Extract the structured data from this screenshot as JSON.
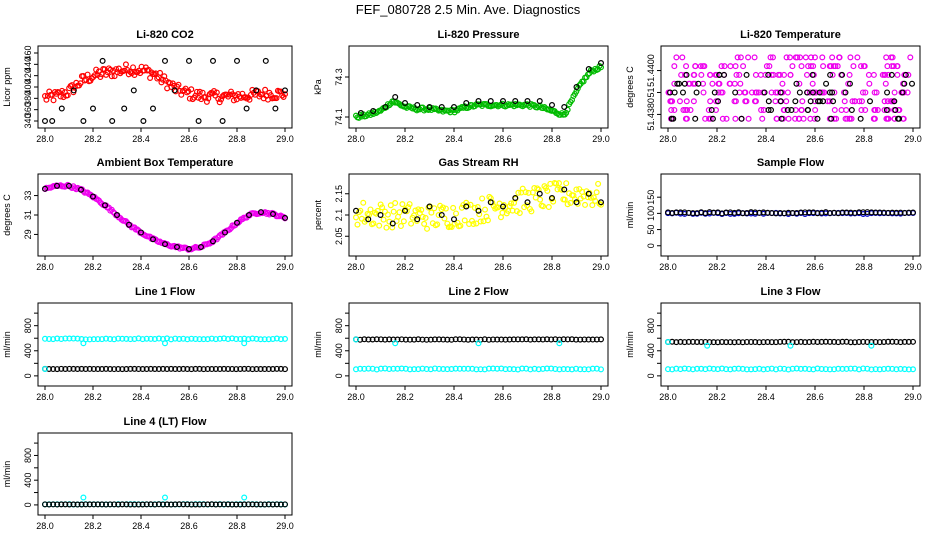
{
  "figure": {
    "title": "FEF_080728  2.5 Min. Ave. Diagnostics"
  },
  "chart_data": [
    {
      "type": "scatter",
      "title": "Li-820 CO2",
      "ylabel": "Licor ppm",
      "xlim": [
        28.0,
        29.0
      ],
      "ylim": [
        340,
        460
      ],
      "xticks": [
        "28.0",
        "28.2",
        "28.4",
        "28.6",
        "28.8",
        "29.0"
      ],
      "yticks": [
        340,
        360,
        380,
        400,
        420,
        440,
        460
      ],
      "series": [
        {
          "color": "#ff0000",
          "style": "dense",
          "x": [
            28.0,
            28.05,
            28.1,
            28.15,
            28.2,
            28.25,
            28.3,
            28.35,
            28.4,
            28.45,
            28.5,
            28.55,
            28.6,
            28.65,
            28.7,
            28.75,
            28.8,
            28.85,
            28.9,
            28.95,
            29.0
          ],
          "y": [
            381,
            384,
            392,
            410,
            420,
            425,
            428,
            432,
            430,
            424,
            410,
            395,
            388,
            384,
            383,
            383,
            384,
            385,
            387,
            388,
            388
          ],
          "spread": 10
        },
        {
          "color": "#000000",
          "style": "levels",
          "x": [
            28.0,
            28.03,
            28.07,
            28.12,
            28.16,
            28.2,
            28.24,
            28.28,
            28.33,
            28.37,
            28.41,
            28.45,
            28.5,
            28.54,
            28.6,
            28.64,
            28.7,
            28.74,
            28.8,
            28.84,
            28.88,
            28.92,
            28.96,
            29.0
          ],
          "y": [
            340,
            340,
            362,
            394,
            340,
            362,
            446,
            340,
            362,
            394,
            340,
            362,
            446,
            394,
            446,
            340,
            446,
            340,
            446,
            362,
            394,
            446,
            362,
            394
          ]
        }
      ]
    },
    {
      "type": "scatter",
      "title": "Li-820 Pressure",
      "ylabel": "kPa",
      "xlim": [
        28.0,
        29.0
      ],
      "ylim": [
        74.08,
        74.42
      ],
      "xticks": [
        "28.0",
        "28.2",
        "28.4",
        "28.6",
        "28.8",
        "29.0"
      ],
      "yticks": [
        74.1,
        74.3
      ],
      "ytick_labels": [
        "74.1",
        "74.3"
      ],
      "series": [
        {
          "color": "#00bb00",
          "style": "dense",
          "x": [
            28.0,
            28.05,
            28.1,
            28.15,
            28.2,
            28.25,
            28.3,
            28.35,
            28.4,
            28.45,
            28.5,
            28.55,
            28.6,
            28.65,
            28.7,
            28.75,
            28.8,
            28.85,
            28.88,
            28.92,
            28.96,
            29.0
          ],
          "y": [
            74.1,
            74.11,
            74.13,
            74.18,
            74.15,
            74.14,
            74.14,
            74.13,
            74.13,
            74.15,
            74.16,
            74.16,
            74.16,
            74.16,
            74.16,
            74.15,
            74.13,
            74.11,
            74.18,
            74.27,
            74.33,
            74.35
          ],
          "spread": 0.008
        },
        {
          "color": "#000000",
          "style": "points",
          "x": [
            28.02,
            28.07,
            28.12,
            28.16,
            28.2,
            28.25,
            28.3,
            28.35,
            28.4,
            28.45,
            28.5,
            28.55,
            28.6,
            28.65,
            28.7,
            28.75,
            28.8,
            28.85,
            28.9,
            28.95,
            29.0
          ],
          "y": [
            74.12,
            74.13,
            74.15,
            74.2,
            74.17,
            74.16,
            74.15,
            74.15,
            74.15,
            74.17,
            74.18,
            74.18,
            74.18,
            74.18,
            74.18,
            74.18,
            74.16,
            74.15,
            74.25,
            74.34,
            74.37
          ]
        }
      ]
    },
    {
      "type": "scatter",
      "title": "Li-820 Temperature",
      "ylabel": "degrees C",
      "xlim": [
        28.0,
        29.0
      ],
      "ylim": [
        51.4377,
        51.4408
      ],
      "xticks": [
        "28.0",
        "28.2",
        "28.4",
        "28.6",
        "28.8",
        "29.0"
      ],
      "yticks": [
        51.438,
        51.439,
        51.44
      ],
      "ytick_labels": [
        "51.4380",
        "51",
        "51.4400"
      ],
      "series": [
        {
          "color": "#ee00ee",
          "style": "grid-random",
          "levels": [
            51.4378,
            51.4382,
            51.4386,
            51.439,
            51.4394,
            51.4398,
            51.4402,
            51.4406
          ],
          "count": 260
        },
        {
          "color": "#000000",
          "style": "grid-random",
          "levels": [
            51.4378,
            51.4382,
            51.4386,
            51.439,
            51.4394,
            51.4398
          ],
          "count": 70
        }
      ]
    },
    {
      "type": "scatter",
      "title": "Ambient Box Temperature",
      "ylabel": "degrees C",
      "xlim": [
        28.0,
        29.0
      ],
      "ylim": [
        27.5,
        34.5
      ],
      "xticks": [
        "28.0",
        "28.2",
        "28.4",
        "28.6",
        "28.8",
        "29.0"
      ],
      "yticks": [
        29,
        31,
        33
      ],
      "series": [
        {
          "color": "#ee00ee",
          "style": "dense",
          "x": [
            28.0,
            28.05,
            28.1,
            28.15,
            28.2,
            28.25,
            28.3,
            28.35,
            28.4,
            28.45,
            28.5,
            28.55,
            28.6,
            28.65,
            28.7,
            28.75,
            28.8,
            28.85,
            28.9,
            28.95,
            29.0
          ],
          "y": [
            33.7,
            34.0,
            34.0,
            33.6,
            32.9,
            32.0,
            31.0,
            30.0,
            29.2,
            28.5,
            28.0,
            27.7,
            27.5,
            27.7,
            28.3,
            29.2,
            30.2,
            31.0,
            31.3,
            31.1,
            30.7
          ],
          "spread": 0.12
        },
        {
          "color": "#000000",
          "style": "points",
          "x": [
            28.0,
            28.05,
            28.1,
            28.15,
            28.2,
            28.25,
            28.3,
            28.35,
            28.4,
            28.45,
            28.5,
            28.55,
            28.6,
            28.65,
            28.7,
            28.75,
            28.8,
            28.85,
            28.9,
            28.95,
            29.0
          ],
          "y": [
            33.7,
            34.0,
            34.0,
            33.6,
            32.9,
            32.0,
            31.0,
            30.0,
            29.2,
            28.5,
            28.0,
            27.7,
            27.5,
            27.7,
            28.3,
            29.2,
            30.2,
            31.0,
            31.3,
            31.1,
            30.7
          ]
        }
      ]
    },
    {
      "type": "scatter",
      "title": "Gas Stream RH",
      "ylabel": "percent",
      "xlim": [
        28.0,
        29.0
      ],
      "ylim": [
        2.02,
        2.18
      ],
      "xticks": [
        "28.0",
        "28.2",
        "28.4",
        "28.6",
        "28.8",
        "29.0"
      ],
      "yticks": [
        2.05,
        2.1,
        2.15
      ],
      "ytick_labels": [
        "2.05",
        "2.1",
        "2.15"
      ],
      "series": [
        {
          "color": "#ffff00",
          "style": "dense",
          "x": [
            28.0,
            28.1,
            28.2,
            28.3,
            28.4,
            28.5,
            28.6,
            28.7,
            28.8,
            28.9,
            29.0
          ],
          "y": [
            2.105,
            2.1,
            2.1,
            2.095,
            2.1,
            2.11,
            2.125,
            2.135,
            2.145,
            2.15,
            2.145
          ],
          "spread": 0.03
        },
        {
          "color": "#000000",
          "style": "points",
          "x": [
            28.0,
            28.05,
            28.1,
            28.15,
            28.2,
            28.25,
            28.3,
            28.35,
            28.4,
            28.45,
            28.5,
            28.55,
            28.6,
            28.65,
            28.7,
            28.75,
            28.8,
            28.85,
            28.9,
            28.95,
            29.0
          ],
          "y": [
            2.11,
            2.09,
            2.1,
            2.08,
            2.11,
            2.09,
            2.12,
            2.1,
            2.09,
            2.12,
            2.11,
            2.13,
            2.12,
            2.14,
            2.13,
            2.15,
            2.14,
            2.16,
            2.13,
            2.15,
            2.13
          ]
        }
      ]
    },
    {
      "type": "scatter",
      "title": "Sample Flow",
      "ylabel": "ml/min",
      "xlim": [
        28.0,
        29.0
      ],
      "ylim": [
        -10,
        200
      ],
      "xticks": [
        "28.0",
        "28.2",
        "28.4",
        "28.6",
        "28.8",
        "29.0"
      ],
      "yticks": [
        0,
        50,
        100,
        150
      ],
      "series": [
        {
          "color": "#0000cc",
          "style": "flat",
          "y": 100,
          "jitter": 2
        },
        {
          "color": "#000000",
          "style": "flat",
          "y": 102,
          "jitter": 2
        }
      ]
    },
    {
      "type": "scatter",
      "title": "Line 1 Flow",
      "ylabel": "ml/min",
      "xlim": [
        28.0,
        29.0
      ],
      "ylim": [
        -50,
        1050
      ],
      "xticks": [
        "28.0",
        "28.2",
        "28.4",
        "28.6",
        "28.8",
        "29.0"
      ],
      "yticks": [
        0,
        200,
        400,
        600,
        800,
        1000
      ],
      "ytick_labels": [
        "0",
        "",
        "400",
        "",
        "800",
        ""
      ],
      "series": [
        {
          "color": "#00ffff",
          "style": "flat",
          "y": 590,
          "jitter": 8,
          "outliers": [
            [
              28.16,
              520
            ],
            [
              28.5,
              520
            ],
            [
              28.83,
              520
            ]
          ]
        },
        {
          "color": "#000000",
          "style": "flat",
          "y": 110,
          "jitter": 2
        },
        {
          "color": "#00ffff",
          "style": "marker",
          "x": [
            28.0
          ],
          "y": [
            110
          ]
        }
      ]
    },
    {
      "type": "scatter",
      "title": "Line 2 Flow",
      "ylabel": "ml/min",
      "xlim": [
        28.0,
        29.0
      ],
      "ylim": [
        -50,
        1050
      ],
      "xticks": [
        "28.0",
        "28.2",
        "28.4",
        "28.6",
        "28.8",
        "29.0"
      ],
      "yticks": [
        0,
        200,
        400,
        600,
        800,
        1000
      ],
      "ytick_labels": [
        "0",
        "",
        "400",
        "",
        "800",
        ""
      ],
      "series": [
        {
          "color": "#00ffff",
          "style": "flat",
          "y": 110,
          "jitter": 8
        },
        {
          "color": "#000000",
          "style": "flat",
          "y": 580,
          "jitter": 4
        },
        {
          "color": "#00ffff",
          "style": "marker",
          "x": [
            28.0,
            28.16,
            28.5,
            28.83
          ],
          "y": [
            580,
            520,
            520,
            520
          ]
        }
      ]
    },
    {
      "type": "scatter",
      "title": "Line 3 Flow",
      "ylabel": "ml/min",
      "xlim": [
        28.0,
        29.0
      ],
      "ylim": [
        -50,
        1050
      ],
      "xticks": [
        "28.0",
        "28.2",
        "28.4",
        "28.6",
        "28.8",
        "29.0"
      ],
      "yticks": [
        0,
        200,
        400,
        600,
        800,
        1000
      ],
      "ytick_labels": [
        "0",
        "",
        "400",
        "",
        "800",
        ""
      ],
      "series": [
        {
          "color": "#00ffff",
          "style": "flat",
          "y": 110,
          "jitter": 8
        },
        {
          "color": "#000000",
          "style": "flat",
          "y": 540,
          "jitter": 4
        },
        {
          "color": "#00ffff",
          "style": "marker",
          "x": [
            28.0,
            28.16,
            28.5,
            28.83
          ],
          "y": [
            540,
            480,
            480,
            480
          ]
        }
      ]
    },
    {
      "type": "scatter",
      "title": "Line 4 (LT) Flow",
      "ylabel": "ml/min",
      "xlim": [
        28.0,
        29.0
      ],
      "ylim": [
        -50,
        1050
      ],
      "xticks": [
        "28.0",
        "28.2",
        "28.4",
        "28.6",
        "28.8",
        "29.0"
      ],
      "yticks": [
        0,
        200,
        400,
        600,
        800,
        1000
      ],
      "ytick_labels": [
        "0",
        "",
        "400",
        "",
        "800",
        ""
      ],
      "series": [
        {
          "color": "#00ffff",
          "style": "flat",
          "y": 10,
          "jitter": 3
        },
        {
          "color": "#000000",
          "style": "flat",
          "y": 8,
          "jitter": 2
        },
        {
          "color": "#00ffff",
          "style": "marker",
          "x": [
            28.16,
            28.5,
            28.83
          ],
          "y": [
            120,
            120,
            120
          ]
        }
      ]
    }
  ]
}
